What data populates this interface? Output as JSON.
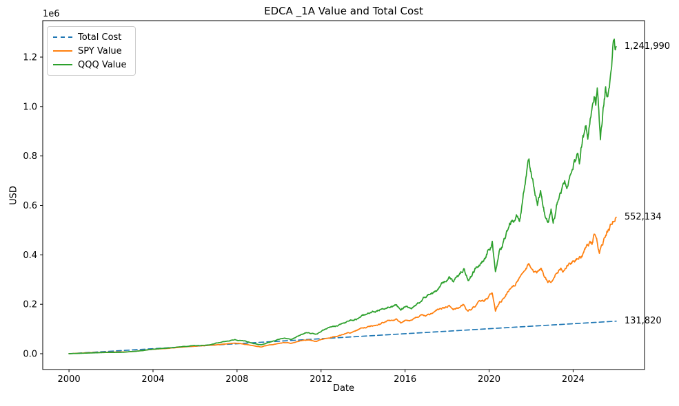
{
  "title": "EDCA _1A Value and Total Cost",
  "axes": {
    "xlabel": "Date",
    "ylabel": "USD",
    "offset_text": "1e6"
  },
  "legend": {
    "items": [
      {
        "label": "Total Cost",
        "color": "#1f77b4",
        "dash": true
      },
      {
        "label": "SPY Value",
        "color": "#ff7f0e",
        "dash": false
      },
      {
        "label": "QQQ Value",
        "color": "#2ca02c",
        "dash": false
      }
    ]
  },
  "annotations": [
    {
      "text": "1,241,990",
      "value": 1241990
    },
    {
      "text": "552,134",
      "value": 552134
    },
    {
      "text": "131,820",
      "value": 131820
    }
  ],
  "chart_data": {
    "type": "line",
    "title": "EDCA _1A Value and Total Cost",
    "xlabel": "Date",
    "ylabel": "USD",
    "xlim": [
      1998.75,
      2027.4
    ],
    "ylim": [
      -64000,
      1347500
    ],
    "x_ticks": [
      2000,
      2004,
      2008,
      2012,
      2016,
      2020,
      2024
    ],
    "y_ticks": [
      {
        "value": 0,
        "label": "0.0"
      },
      {
        "value": 200000,
        "label": "0.2"
      },
      {
        "value": 400000,
        "label": "0.4"
      },
      {
        "value": 600000,
        "label": "0.6"
      },
      {
        "value": 800000,
        "label": "0.8"
      },
      {
        "value": 1000000,
        "label": "1.0"
      },
      {
        "value": 1200000,
        "label": "1.2"
      }
    ],
    "grid": false,
    "legend_position": "upper left",
    "series": [
      {
        "name": "Total Cost",
        "color": "#1f77b4",
        "style": "dashed",
        "noise": 0,
        "end_value": 131820,
        "points": [
          [
            2000.0,
            0
          ],
          [
            2026.05,
            131820
          ]
        ]
      },
      {
        "name": "SPY Value",
        "color": "#ff7f0e",
        "style": "solid",
        "noise": 0.014,
        "end_value": 552134,
        "points": [
          [
            2000.0,
            200
          ],
          [
            2000.5,
            2000
          ],
          [
            2001.0,
            4000
          ],
          [
            2001.8,
            6000
          ],
          [
            2002.5,
            7000
          ],
          [
            2002.8,
            7500
          ],
          [
            2003.3,
            11000
          ],
          [
            2004.0,
            18000
          ],
          [
            2004.6,
            21000
          ],
          [
            2005.2,
            25000
          ],
          [
            2006.0,
            30000
          ],
          [
            2006.8,
            35000
          ],
          [
            2007.6,
            41000
          ],
          [
            2007.9,
            43000
          ],
          [
            2008.3,
            39000
          ],
          [
            2008.7,
            33000
          ],
          [
            2009.15,
            27000
          ],
          [
            2009.6,
            36000
          ],
          [
            2010.2,
            45000
          ],
          [
            2010.55,
            42000
          ],
          [
            2011.0,
            52000
          ],
          [
            2011.4,
            56000
          ],
          [
            2011.8,
            50000
          ],
          [
            2012.2,
            62000
          ],
          [
            2012.9,
            74000
          ],
          [
            2013.5,
            88000
          ],
          [
            2014.0,
            105000
          ],
          [
            2014.6,
            115000
          ],
          [
            2015.2,
            135000
          ],
          [
            2015.6,
            140000
          ],
          [
            2015.8,
            124000
          ],
          [
            2016.1,
            135000
          ],
          [
            2016.6,
            148000
          ],
          [
            2017.2,
            160000
          ],
          [
            2017.9,
            185000
          ],
          [
            2018.1,
            196000
          ],
          [
            2018.3,
            178000
          ],
          [
            2018.8,
            198000
          ],
          [
            2019.0,
            172000
          ],
          [
            2019.4,
            198000
          ],
          [
            2019.9,
            222000
          ],
          [
            2020.15,
            245000
          ],
          [
            2020.3,
            172000
          ],
          [
            2020.5,
            210000
          ],
          [
            2020.8,
            238000
          ],
          [
            2021.1,
            272000
          ],
          [
            2021.5,
            315000
          ],
          [
            2021.9,
            364000
          ],
          [
            2022.2,
            332000
          ],
          [
            2022.45,
            345000
          ],
          [
            2022.8,
            288000
          ],
          [
            2023.05,
            300000
          ],
          [
            2023.2,
            325000
          ],
          [
            2023.4,
            345000
          ],
          [
            2023.55,
            335000
          ],
          [
            2023.75,
            355000
          ],
          [
            2024.0,
            375000
          ],
          [
            2024.3,
            392000
          ],
          [
            2024.6,
            430000
          ],
          [
            2024.8,
            455000
          ],
          [
            2024.9,
            442000
          ],
          [
            2025.0,
            484000
          ],
          [
            2025.1,
            468000
          ],
          [
            2025.25,
            406000
          ],
          [
            2025.5,
            470000
          ],
          [
            2025.7,
            502000
          ],
          [
            2025.9,
            532000
          ],
          [
            2026.05,
            552134
          ]
        ]
      },
      {
        "name": "QQQ Value",
        "color": "#2ca02c",
        "style": "solid",
        "noise": 0.014,
        "end_value": 1241990,
        "points": [
          [
            2000.0,
            200
          ],
          [
            2000.5,
            1500
          ],
          [
            2001.0,
            3000
          ],
          [
            2001.8,
            5000
          ],
          [
            2002.6,
            6000
          ],
          [
            2003.2,
            10000
          ],
          [
            2004.0,
            18000
          ],
          [
            2004.8,
            24000
          ],
          [
            2005.6,
            29000
          ],
          [
            2006.4,
            34000
          ],
          [
            2007.2,
            45000
          ],
          [
            2007.9,
            57000
          ],
          [
            2008.3,
            52000
          ],
          [
            2008.7,
            43000
          ],
          [
            2009.15,
            36000
          ],
          [
            2009.6,
            48000
          ],
          [
            2010.2,
            62000
          ],
          [
            2010.55,
            58000
          ],
          [
            2011.0,
            75000
          ],
          [
            2011.4,
            85000
          ],
          [
            2011.8,
            80000
          ],
          [
            2012.2,
            100000
          ],
          [
            2012.9,
            118000
          ],
          [
            2013.5,
            135000
          ],
          [
            2014.0,
            155000
          ],
          [
            2014.6,
            170000
          ],
          [
            2015.2,
            188000
          ],
          [
            2015.6,
            198000
          ],
          [
            2015.8,
            176000
          ],
          [
            2016.1,
            192000
          ],
          [
            2016.3,
            182000
          ],
          [
            2016.8,
            215000
          ],
          [
            2017.4,
            252000
          ],
          [
            2017.9,
            292000
          ],
          [
            2018.1,
            312000
          ],
          [
            2018.3,
            290000
          ],
          [
            2018.8,
            344000
          ],
          [
            2019.0,
            296000
          ],
          [
            2019.4,
            350000
          ],
          [
            2019.9,
            402000
          ],
          [
            2020.15,
            455000
          ],
          [
            2020.3,
            332000
          ],
          [
            2020.5,
            420000
          ],
          [
            2020.8,
            480000
          ],
          [
            2021.1,
            540000
          ],
          [
            2021.3,
            562000
          ],
          [
            2021.45,
            535000
          ],
          [
            2021.7,
            680000
          ],
          [
            2021.9,
            788000
          ],
          [
            2022.1,
            692000
          ],
          [
            2022.3,
            600000
          ],
          [
            2022.45,
            660000
          ],
          [
            2022.65,
            562000
          ],
          [
            2022.8,
            531000
          ],
          [
            2022.95,
            585000
          ],
          [
            2023.05,
            528000
          ],
          [
            2023.35,
            640000
          ],
          [
            2023.6,
            700000
          ],
          [
            2023.7,
            668000
          ],
          [
            2023.9,
            730000
          ],
          [
            2024.05,
            780000
          ],
          [
            2024.2,
            810000
          ],
          [
            2024.3,
            768000
          ],
          [
            2024.45,
            870000
          ],
          [
            2024.6,
            920000
          ],
          [
            2024.7,
            868000
          ],
          [
            2024.85,
            960000
          ],
          [
            2025.0,
            1040000
          ],
          [
            2025.08,
            1005000
          ],
          [
            2025.15,
            1075000
          ],
          [
            2025.3,
            866000
          ],
          [
            2025.45,
            1000000
          ],
          [
            2025.55,
            1080000
          ],
          [
            2025.65,
            1040000
          ],
          [
            2025.8,
            1140000
          ],
          [
            2025.92,
            1268000
          ],
          [
            2026.0,
            1230000
          ],
          [
            2026.05,
            1241990
          ]
        ]
      }
    ]
  }
}
